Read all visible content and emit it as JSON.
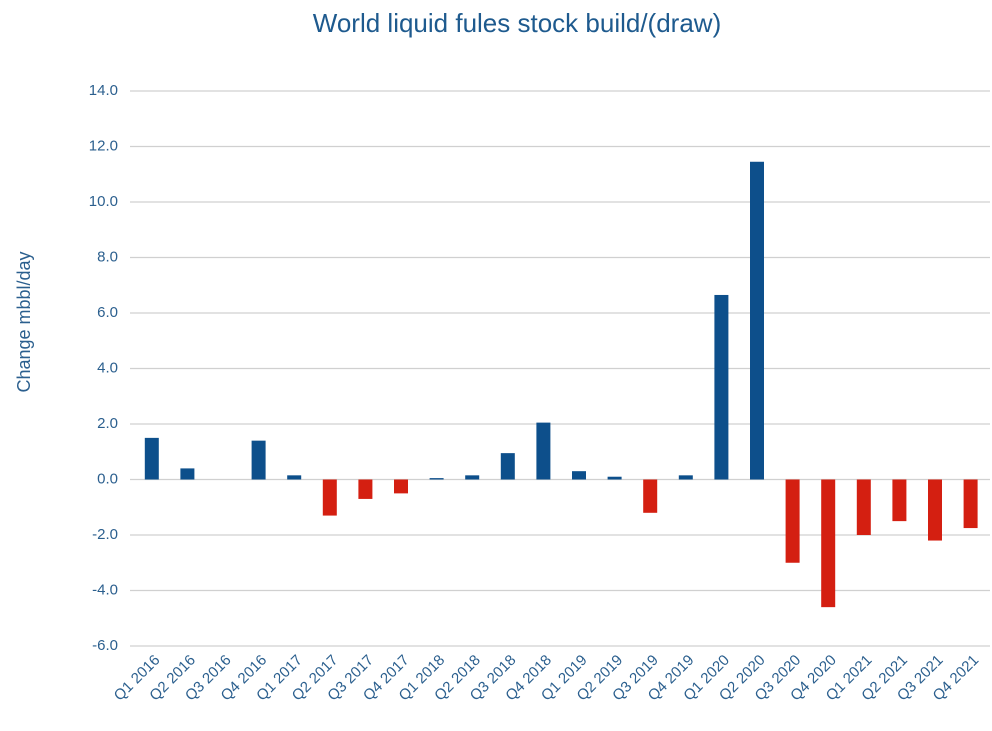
{
  "chart_data": {
    "type": "bar",
    "title": "World liquid fules stock build/(draw)",
    "y_label": "Change mbbl/day",
    "categories": [
      "Q1 2016",
      "Q2 2016",
      "Q3 2016",
      "Q4 2016",
      "Q1 2017",
      "Q2 2017",
      "Q3 2017",
      "Q4 2017",
      "Q1 2018",
      "Q2 2018",
      "Q3 2018",
      "Q4 2018",
      "Q1 2019",
      "Q2 2019",
      "Q3 2019",
      "Q4 2019",
      "Q1 2020",
      "Q2 2020",
      "Q3 2020",
      "Q4 2020",
      "Q1 2021",
      "Q2 2021",
      "Q3 2021",
      "Q4 2021"
    ],
    "values": [
      1.5,
      0.4,
      0,
      1.4,
      0.15,
      -1.3,
      -0.7,
      -0.5,
      0.05,
      0.15,
      0.95,
      2.05,
      0.3,
      0.1,
      -1.2,
      0.15,
      6.65,
      11.45,
      -3.0,
      -4.6,
      -2.0,
      -1.5,
      -2.2,
      -1.75
    ],
    "color": "#0d4f8b",
    "negative_color": "#d41f11",
    "ylim": [
      -6,
      14
    ],
    "yticks": [
      {
        "value": -6,
        "label": "-6.0"
      },
      {
        "value": -4,
        "label": "-4.0"
      },
      {
        "value": -2,
        "label": "-2.0"
      },
      {
        "value": 0,
        "label": "0.0"
      },
      {
        "value": 2,
        "label": "2.0"
      },
      {
        "value": 4,
        "label": "4.0"
      },
      {
        "value": 6,
        "label": "6.0"
      },
      {
        "value": 8,
        "label": "8.0"
      },
      {
        "value": 10,
        "label": "10.0"
      },
      {
        "value": 12,
        "label": "12.0"
      },
      {
        "value": 14,
        "label": "14.0"
      }
    ],
    "grid": true
  }
}
